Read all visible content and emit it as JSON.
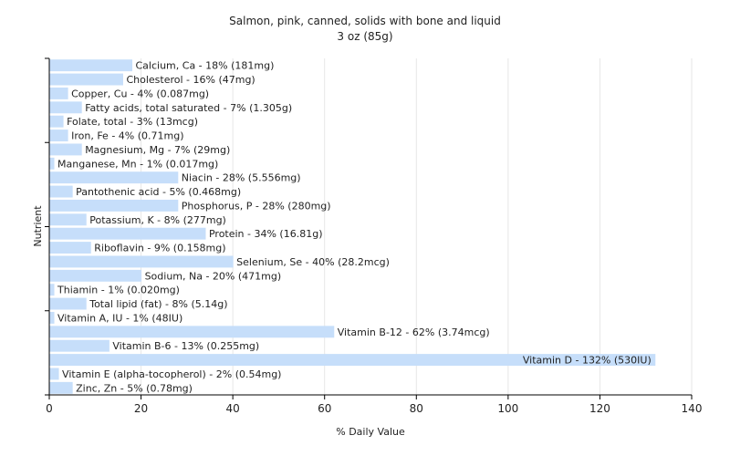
{
  "chart_data": {
    "type": "bar",
    "orientation": "horizontal",
    "title": "Salmon, pink, canned, solids with bone and liquid",
    "subtitle": "3 oz (85g)",
    "xlabel": "% Daily Value",
    "ylabel": "Nutrient",
    "xlim": [
      0,
      140
    ],
    "xticks": [
      "0",
      "20",
      "40",
      "60",
      "80",
      "100",
      "120",
      "140"
    ],
    "grid": true,
    "bar_color": "#c6defa",
    "grid_color": "#e6e6e6",
    "categories": [
      "Calcium, Ca",
      "Cholesterol",
      "Copper, Cu",
      "Fatty acids, total saturated",
      "Folate, total",
      "Iron, Fe",
      "Magnesium, Mg",
      "Manganese, Mn",
      "Niacin",
      "Pantothenic acid",
      "Phosphorus, P",
      "Potassium, K",
      "Protein",
      "Riboflavin",
      "Selenium, Se",
      "Sodium, Na",
      "Thiamin",
      "Total lipid (fat)",
      "Vitamin A, IU",
      "Vitamin B-12",
      "Vitamin B-6",
      "Vitamin D",
      "Vitamin E (alpha-tocopherol)",
      "Zinc, Zn"
    ],
    "values": [
      18,
      16,
      4,
      7,
      3,
      4,
      7,
      1,
      28,
      5,
      28,
      8,
      34,
      9,
      40,
      20,
      1,
      8,
      1,
      62,
      13,
      132,
      2,
      5
    ],
    "labels": [
      "Calcium, Ca - 18% (181mg)",
      "Cholesterol - 16% (47mg)",
      "Copper, Cu - 4% (0.087mg)",
      "Fatty acids, total saturated - 7% (1.305g)",
      "Folate, total - 3% (13mcg)",
      "Iron, Fe - 4% (0.71mg)",
      "Magnesium, Mg - 7% (29mg)",
      "Manganese, Mn - 1% (0.017mg)",
      "Niacin - 28% (5.556mg)",
      "Pantothenic acid - 5% (0.468mg)",
      "Phosphorus, P - 28% (280mg)",
      "Potassium, K - 8% (277mg)",
      "Protein - 34% (16.81g)",
      "Riboflavin - 9% (0.158mg)",
      "Selenium, Se - 40% (28.2mcg)",
      "Sodium, Na - 20% (471mg)",
      "Thiamin - 1% (0.020mg)",
      "Total lipid (fat) - 8% (5.14g)",
      "Vitamin A, IU - 1% (48IU)",
      "Vitamin B-12 - 62% (3.74mcg)",
      "Vitamin B-6 - 13% (0.255mg)",
      "Vitamin D - 132% (530IU)",
      "Vitamin E (alpha-tocopherol) - 2% (0.54mg)",
      "Zinc, Zn - 5% (0.78mg)"
    ]
  }
}
